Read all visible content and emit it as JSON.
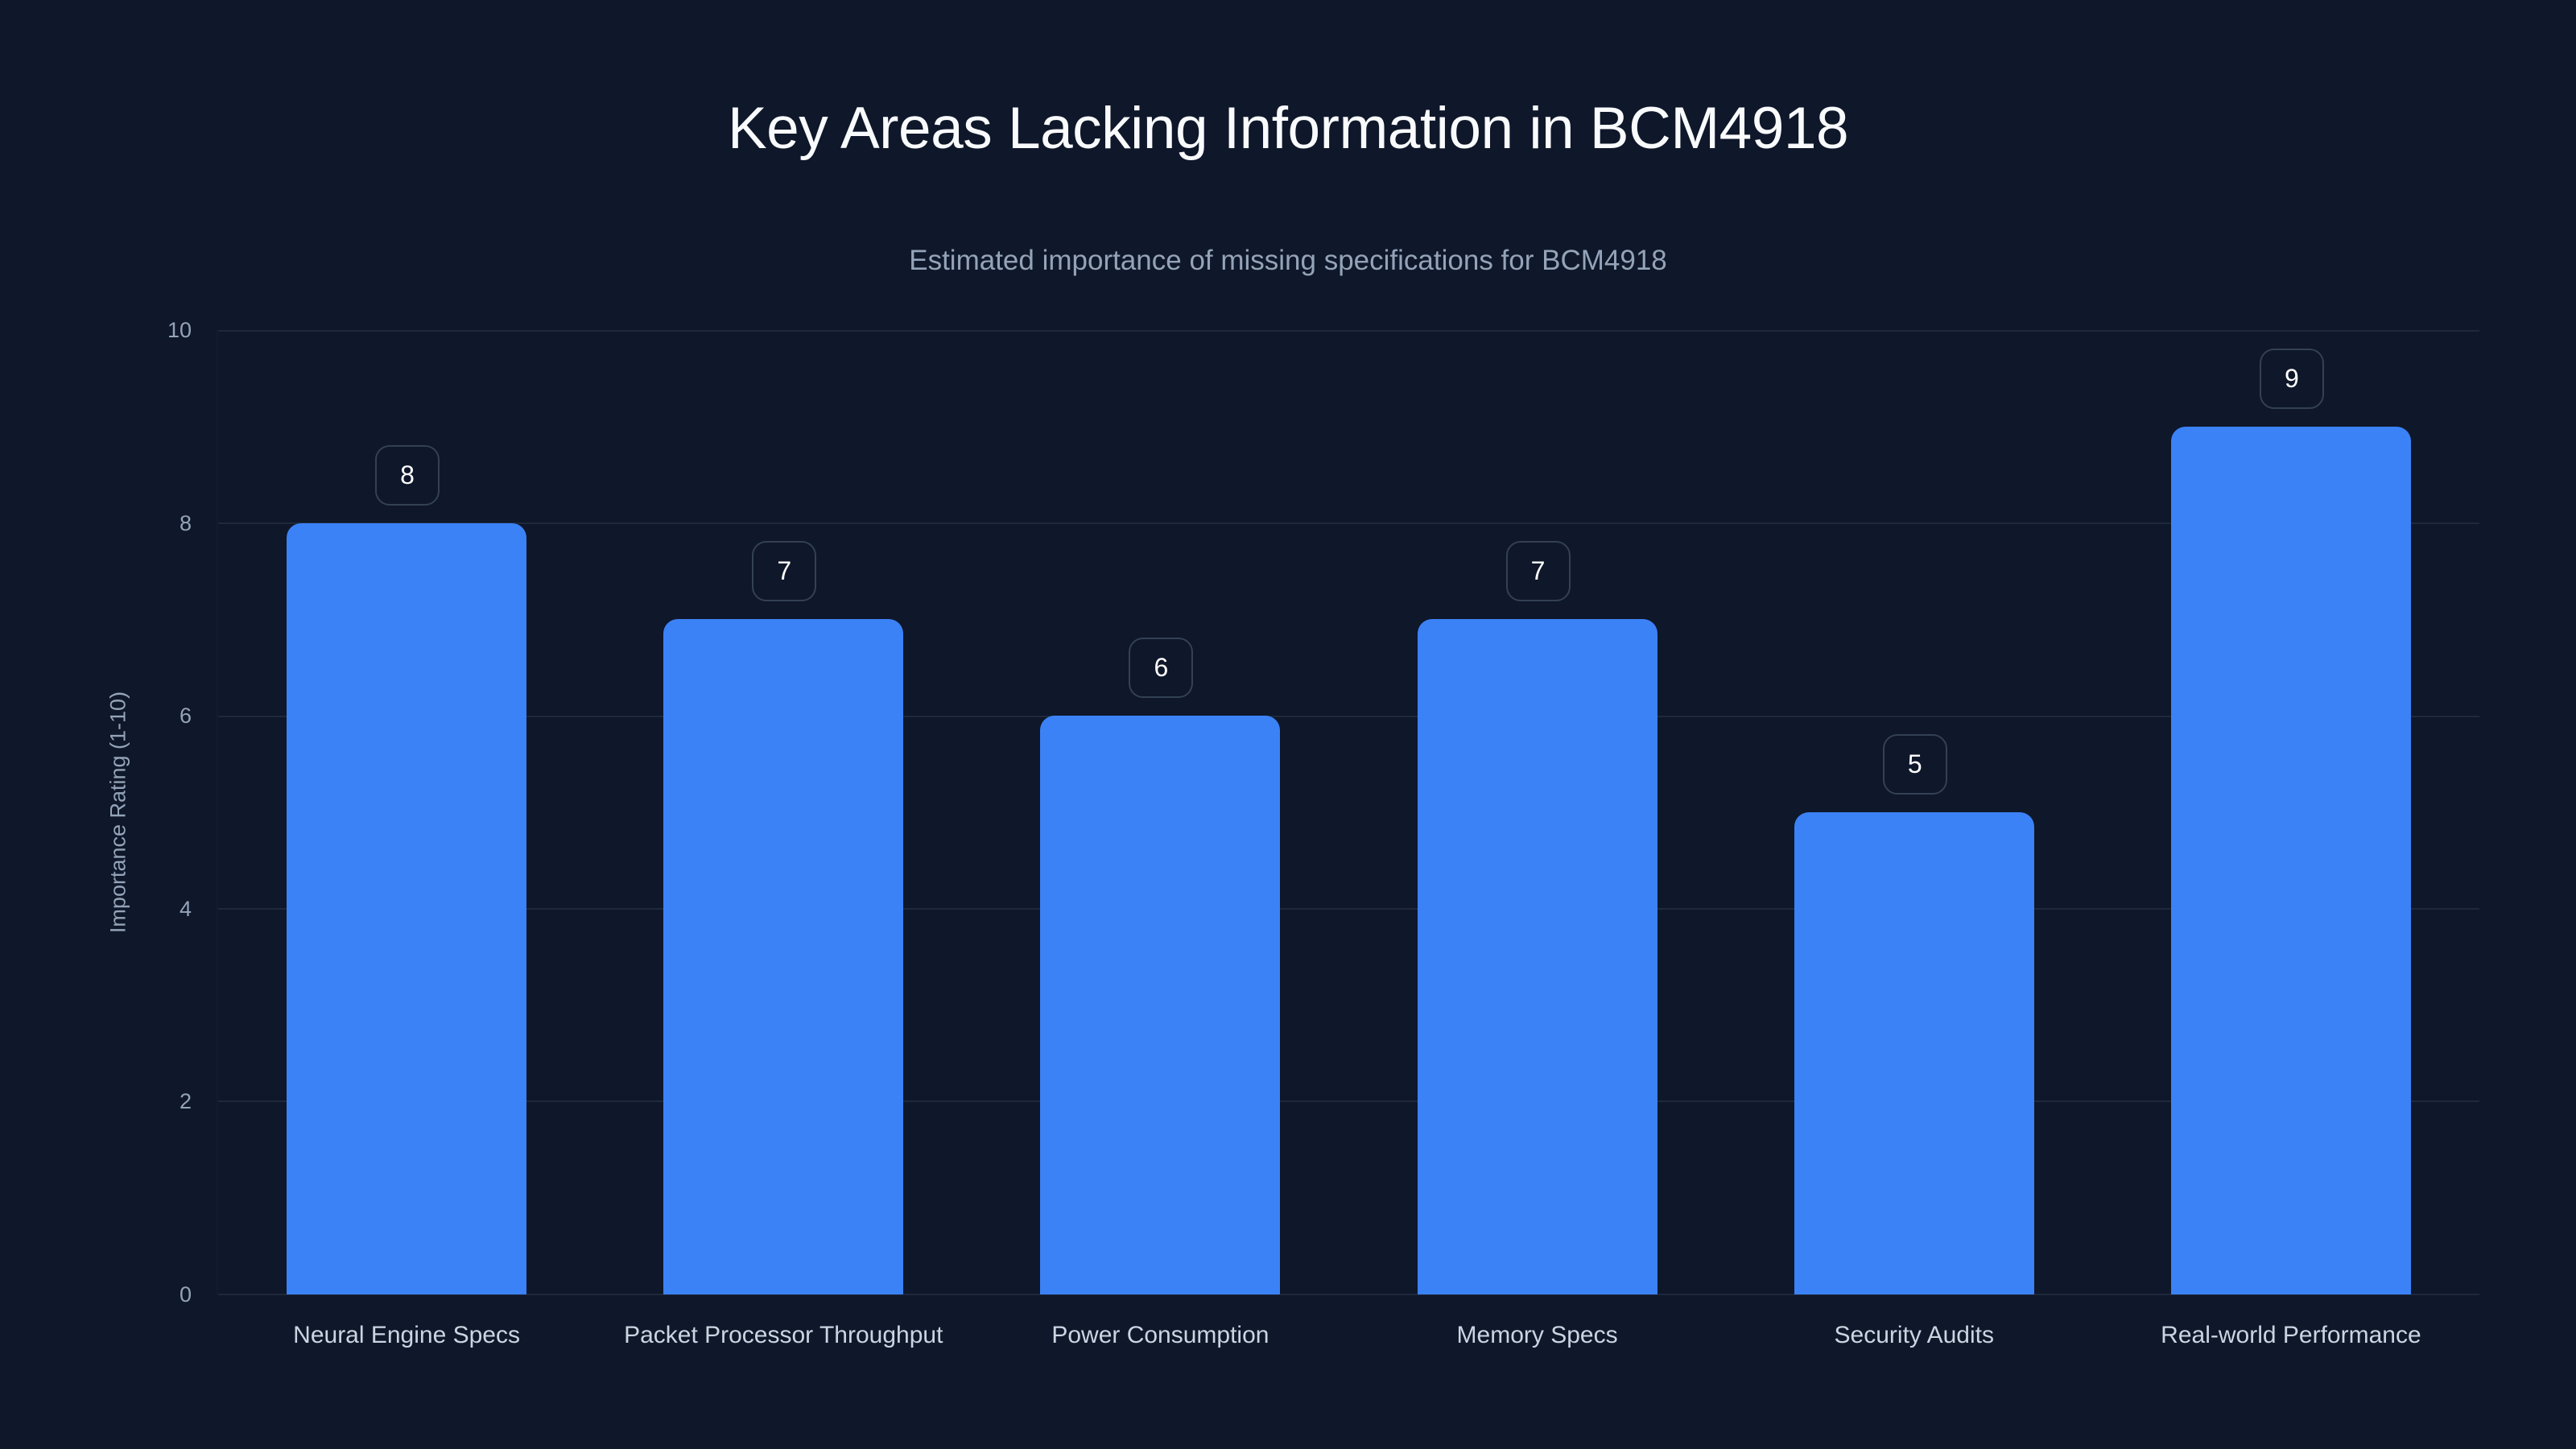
{
  "chart_data": {
    "type": "bar",
    "title": "Key Areas Lacking Information in BCM4918",
    "subtitle": "Estimated importance of missing specifications for BCM4918",
    "xlabel": "",
    "ylabel": "Importance Rating (1-10)",
    "ylim": [
      0,
      10
    ],
    "yticks": [
      "0",
      "2",
      "4",
      "6",
      "8",
      "10"
    ],
    "grid": true,
    "legend": null,
    "categories": [
      "Neural Engine Specs",
      "Packet Processor Throughput",
      "Power Consumption",
      "Memory Specs",
      "Security Audits",
      "Real-world Performance"
    ],
    "values": [
      8,
      7,
      6,
      7,
      5,
      9
    ],
    "value_labels": [
      "8",
      "7",
      "6",
      "7",
      "5",
      "9"
    ],
    "colors": {
      "bar": "#3b82f6",
      "background": "#0f172a",
      "grid": "#1e293b",
      "label_border": "#334155"
    }
  }
}
